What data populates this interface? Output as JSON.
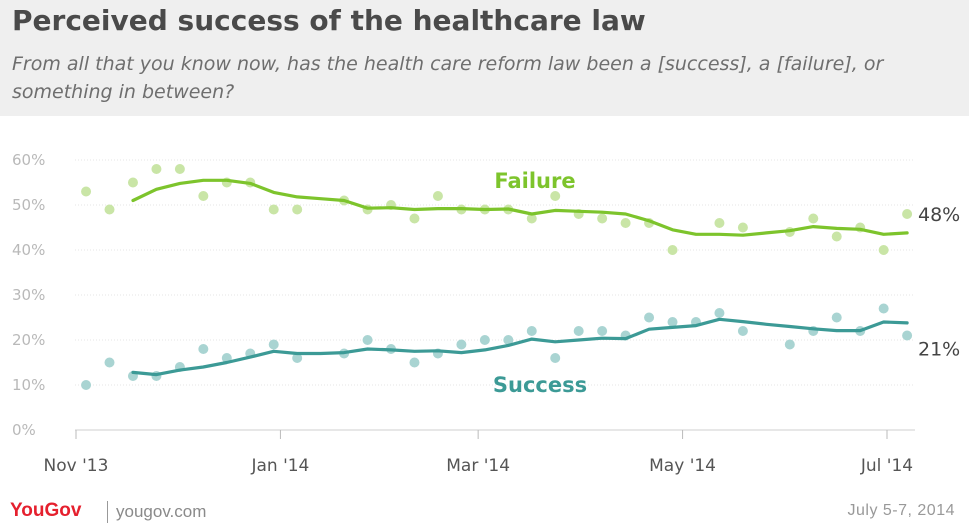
{
  "header": {
    "title": "Perceived success of the healthcare law",
    "subtitle": "From all that you know now, has the health care reform law been a [success], a [failure], or something in between?"
  },
  "footer": {
    "brand": "YouGov",
    "site": "yougov.com",
    "date": "July 5-7, 2014"
  },
  "chart_data": {
    "type": "scatter",
    "x_axis": {
      "type": "date",
      "range": [
        "2013-11-01",
        "2014-07-06"
      ],
      "ticks": [
        {
          "date": "2013-11-01",
          "label": "Nov '13"
        },
        {
          "date": "2014-01-01",
          "label": "Jan '14"
        },
        {
          "date": "2014-03-01",
          "label": "Mar '14"
        },
        {
          "date": "2014-05-01",
          "label": "May '14"
        },
        {
          "date": "2014-07-01",
          "label": "Jul '14"
        }
      ]
    },
    "y_axis": {
      "range": [
        0,
        60
      ],
      "ticks": [
        0,
        10,
        20,
        30,
        40,
        50,
        60
      ],
      "tick_labels": [
        "0%",
        "10%",
        "20%",
        "30%",
        "40%",
        "50%",
        "60%"
      ],
      "grid": true
    },
    "series": [
      {
        "name": "Failure",
        "color": "#7dc42c",
        "point_color": "#c9e5a6",
        "end_label": "48%",
        "points": [
          [
            "2013-11-04",
            53
          ],
          [
            "2013-11-11",
            49
          ],
          [
            "2013-11-18",
            55
          ],
          [
            "2013-11-25",
            58
          ],
          [
            "2013-12-02",
            58
          ],
          [
            "2013-12-09",
            52
          ],
          [
            "2013-12-16",
            55
          ],
          [
            "2013-12-23",
            55
          ],
          [
            "2013-12-30",
            49
          ],
          [
            "2014-01-06",
            49
          ],
          [
            "2014-01-20",
            51
          ],
          [
            "2014-01-27",
            49
          ],
          [
            "2014-02-03",
            50
          ],
          [
            "2014-02-10",
            47
          ],
          [
            "2014-02-17",
            52
          ],
          [
            "2014-02-24",
            49
          ],
          [
            "2014-03-03",
            49
          ],
          [
            "2014-03-10",
            49
          ],
          [
            "2014-03-17",
            47
          ],
          [
            "2014-03-24",
            52
          ],
          [
            "2014-03-31",
            48
          ],
          [
            "2014-04-07",
            47
          ],
          [
            "2014-04-14",
            46
          ],
          [
            "2014-04-21",
            46
          ],
          [
            "2014-04-28",
            40
          ],
          [
            "2014-05-12",
            46
          ],
          [
            "2014-05-19",
            45
          ],
          [
            "2014-06-02",
            44
          ],
          [
            "2014-06-09",
            47
          ],
          [
            "2014-06-16",
            43
          ],
          [
            "2014-06-23",
            45
          ],
          [
            "2014-06-30",
            40
          ],
          [
            "2014-07-07",
            48
          ]
        ],
        "trend": [
          [
            "2013-11-18",
            51
          ],
          [
            "2013-11-25",
            53.5
          ],
          [
            "2013-12-02",
            54.8
          ],
          [
            "2013-12-09",
            55.5
          ],
          [
            "2013-12-16",
            55.5
          ],
          [
            "2013-12-23",
            54.8
          ],
          [
            "2013-12-30",
            52.8
          ],
          [
            "2014-01-06",
            51.8
          ],
          [
            "2014-01-13",
            51.4
          ],
          [
            "2014-01-20",
            51
          ],
          [
            "2014-01-27",
            49.3
          ],
          [
            "2014-02-03",
            49.4
          ],
          [
            "2014-02-10",
            49
          ],
          [
            "2014-02-17",
            49.2
          ],
          [
            "2014-02-24",
            49.2
          ],
          [
            "2014-03-03",
            49
          ],
          [
            "2014-03-10",
            49.1
          ],
          [
            "2014-03-17",
            48
          ],
          [
            "2014-03-24",
            48.8
          ],
          [
            "2014-03-31",
            48.6
          ],
          [
            "2014-04-07",
            48.4
          ],
          [
            "2014-04-14",
            48
          ],
          [
            "2014-04-21",
            46.5
          ],
          [
            "2014-04-28",
            44.5
          ],
          [
            "2014-05-05",
            43.5
          ],
          [
            "2014-05-12",
            43.5
          ],
          [
            "2014-05-19",
            43.3
          ],
          [
            "2014-05-26",
            43.8
          ],
          [
            "2014-06-02",
            44.3
          ],
          [
            "2014-06-09",
            45.2
          ],
          [
            "2014-06-16",
            44.8
          ],
          [
            "2014-06-23",
            44.6
          ],
          [
            "2014-06-30",
            43.5
          ],
          [
            "2014-07-07",
            43.8
          ]
        ]
      },
      {
        "name": "Success",
        "color": "#3c9a96",
        "point_color": "#a9d4d2",
        "end_label": "21%",
        "points": [
          [
            "2013-11-04",
            10
          ],
          [
            "2013-11-11",
            15
          ],
          [
            "2013-11-18",
            12
          ],
          [
            "2013-11-25",
            12
          ],
          [
            "2013-12-02",
            14
          ],
          [
            "2013-12-09",
            18
          ],
          [
            "2013-12-16",
            16
          ],
          [
            "2013-12-23",
            17
          ],
          [
            "2013-12-30",
            19
          ],
          [
            "2014-01-06",
            16
          ],
          [
            "2014-01-20",
            17
          ],
          [
            "2014-01-27",
            20
          ],
          [
            "2014-02-03",
            18
          ],
          [
            "2014-02-10",
            15
          ],
          [
            "2014-02-17",
            17
          ],
          [
            "2014-02-24",
            19
          ],
          [
            "2014-03-03",
            20
          ],
          [
            "2014-03-10",
            20
          ],
          [
            "2014-03-17",
            22
          ],
          [
            "2014-03-24",
            16
          ],
          [
            "2014-03-31",
            22
          ],
          [
            "2014-04-07",
            22
          ],
          [
            "2014-04-14",
            21
          ],
          [
            "2014-04-21",
            25
          ],
          [
            "2014-04-28",
            24
          ],
          [
            "2014-05-05",
            24
          ],
          [
            "2014-05-12",
            26
          ],
          [
            "2014-05-19",
            22
          ],
          [
            "2014-06-02",
            19
          ],
          [
            "2014-06-09",
            22
          ],
          [
            "2014-06-16",
            25
          ],
          [
            "2014-06-23",
            22
          ],
          [
            "2014-06-30",
            27
          ],
          [
            "2014-07-07",
            21
          ]
        ],
        "trend": [
          [
            "2013-11-18",
            12.8
          ],
          [
            "2013-11-25",
            12.3
          ],
          [
            "2013-12-02",
            13.3
          ],
          [
            "2013-12-09",
            14
          ],
          [
            "2013-12-16",
            15
          ],
          [
            "2013-12-23",
            16.2
          ],
          [
            "2013-12-30",
            17.5
          ],
          [
            "2014-01-06",
            17
          ],
          [
            "2014-01-13",
            17
          ],
          [
            "2014-01-20",
            17.2
          ],
          [
            "2014-01-27",
            18
          ],
          [
            "2014-02-03",
            17.8
          ],
          [
            "2014-02-10",
            17.5
          ],
          [
            "2014-02-17",
            17.6
          ],
          [
            "2014-02-24",
            17.2
          ],
          [
            "2014-03-03",
            17.8
          ],
          [
            "2014-03-10",
            18.8
          ],
          [
            "2014-03-17",
            20.2
          ],
          [
            "2014-03-24",
            19.6
          ],
          [
            "2014-03-31",
            20
          ],
          [
            "2014-04-07",
            20.4
          ],
          [
            "2014-04-14",
            20.3
          ],
          [
            "2014-04-21",
            22.4
          ],
          [
            "2014-04-28",
            22.8
          ],
          [
            "2014-05-05",
            23.2
          ],
          [
            "2014-05-12",
            24.6
          ],
          [
            "2014-05-19",
            24.1
          ],
          [
            "2014-05-26",
            23.5
          ],
          [
            "2014-06-02",
            23
          ],
          [
            "2014-06-09",
            22.5
          ],
          [
            "2014-06-16",
            22.1
          ],
          [
            "2014-06-23",
            22.1
          ],
          [
            "2014-06-30",
            24
          ],
          [
            "2014-07-07",
            23.8
          ]
        ]
      }
    ]
  }
}
